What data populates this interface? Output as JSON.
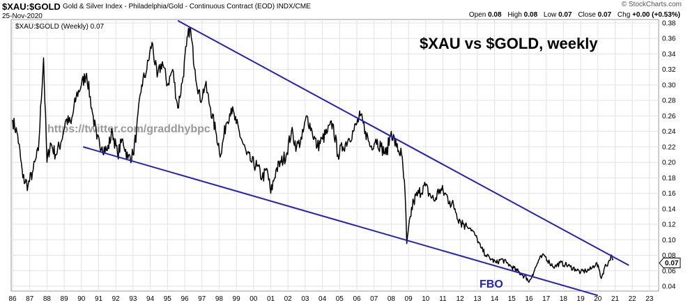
{
  "header": {
    "symbol": "$XAU:$GOLD",
    "description": "Gold & Silver Index - Philadelphia/Gold - Continuous Contract (EOD)  INDX/CME",
    "date": "25-Nov-2020",
    "brand": "© StockCharts.com",
    "open_label": "Open",
    "open": "0.08",
    "high_label": "High",
    "high": "0.08",
    "low_label": "Low",
    "low": "0.07",
    "close_label": "Close",
    "close": "0.07",
    "chg_label": "Chg",
    "chg": "+0.00 (+0.53%)"
  },
  "colors": {
    "price": "#000000",
    "trendline": "#1e1ed2",
    "grid": "#e2e2e2",
    "fbo_text": "#1e1ed2"
  },
  "chart_data": {
    "type": "line",
    "title": "$XAU vs $GOLD, weekly",
    "legend": "$XAU:$GOLD (Weekly) 0.07",
    "legend_position": "top-left",
    "watermark": "https://twitter.com/graddhybpc",
    "annotation": "FBO",
    "last_value_label": "0.07",
    "ylim": [
      0.03,
      0.385
    ],
    "xlim": [
      1986.0,
      2023.5
    ],
    "y_ticks": [
      "0.04",
      "0.06",
      "0.08",
      "0.10",
      "0.12",
      "0.14",
      "0.16",
      "0.18",
      "0.20",
      "0.22",
      "0.24",
      "0.26",
      "0.28",
      "0.30",
      "0.32",
      "0.34",
      "0.36",
      "0.38"
    ],
    "x_ticks": [
      "86",
      "87",
      "88",
      "89",
      "90",
      "91",
      "92",
      "93",
      "94",
      "95",
      "96",
      "97",
      "98",
      "99",
      "00",
      "01",
      "02",
      "03",
      "04",
      "05",
      "06",
      "07",
      "08",
      "09",
      "10",
      "11",
      "12",
      "13",
      "14",
      "15",
      "16",
      "17",
      "18",
      "19",
      "20",
      "21",
      "22",
      "23"
    ],
    "series": [
      {
        "name": "$XAU:$GOLD (Weekly)",
        "x": [
          1986.0,
          1986.3,
          1986.6,
          1986.9,
          1987.2,
          1987.5,
          1987.8,
          1988.0,
          1988.2,
          1988.5,
          1988.8,
          1989.1,
          1989.4,
          1989.7,
          1990.0,
          1990.3,
          1990.6,
          1990.9,
          1991.2,
          1991.5,
          1991.8,
          1992.1,
          1992.4,
          1992.7,
          1993.0,
          1993.2,
          1993.5,
          1993.8,
          1994.1,
          1994.4,
          1994.7,
          1995.0,
          1995.3,
          1995.6,
          1995.9,
          1996.1,
          1996.3,
          1996.6,
          1996.9,
          1997.2,
          1997.5,
          1997.8,
          1998.1,
          1998.4,
          1998.7,
          1999.0,
          1999.3,
          1999.6,
          1999.9,
          2000.2,
          2000.5,
          2000.8,
          2001.0,
          2001.3,
          2001.6,
          2001.9,
          2002.2,
          2002.5,
          2002.8,
          2003.1,
          2003.4,
          2003.7,
          2004.0,
          2004.3,
          2004.6,
          2004.9,
          2005.2,
          2005.5,
          2005.8,
          2006.0,
          2006.2,
          2006.5,
          2006.8,
          2007.1,
          2007.4,
          2007.7,
          2008.0,
          2008.3,
          2008.6,
          2008.8,
          2008.9,
          2009.1,
          2009.3,
          2009.6,
          2009.9,
          2010.2,
          2010.5,
          2010.8,
          2011.1,
          2011.4,
          2011.7,
          2012.0,
          2012.3,
          2012.6,
          2012.9,
          2013.2,
          2013.5,
          2013.8,
          2014.1,
          2014.4,
          2014.7,
          2015.0,
          2015.3,
          2015.6,
          2015.9,
          2016.0,
          2016.2,
          2016.4,
          2016.6,
          2016.9,
          2017.2,
          2017.5,
          2017.8,
          2018.1,
          2018.4,
          2018.7,
          2019.0,
          2019.3,
          2019.6,
          2019.9,
          2020.1,
          2020.2,
          2020.4,
          2020.6,
          2020.8,
          2020.9
        ],
        "values": [
          0.255,
          0.235,
          0.18,
          0.17,
          0.19,
          0.215,
          0.335,
          0.2,
          0.225,
          0.21,
          0.225,
          0.255,
          0.25,
          0.285,
          0.3,
          0.315,
          0.27,
          0.23,
          0.22,
          0.215,
          0.24,
          0.21,
          0.23,
          0.205,
          0.21,
          0.24,
          0.3,
          0.32,
          0.355,
          0.31,
          0.33,
          0.3,
          0.32,
          0.27,
          0.31,
          0.35,
          0.375,
          0.32,
          0.28,
          0.3,
          0.27,
          0.24,
          0.21,
          0.25,
          0.27,
          0.25,
          0.23,
          0.21,
          0.2,
          0.195,
          0.18,
          0.19,
          0.16,
          0.19,
          0.2,
          0.21,
          0.24,
          0.22,
          0.23,
          0.26,
          0.24,
          0.22,
          0.23,
          0.24,
          0.25,
          0.21,
          0.22,
          0.23,
          0.24,
          0.25,
          0.26,
          0.24,
          0.22,
          0.23,
          0.22,
          0.21,
          0.24,
          0.22,
          0.21,
          0.16,
          0.095,
          0.13,
          0.15,
          0.16,
          0.17,
          0.16,
          0.15,
          0.165,
          0.16,
          0.15,
          0.14,
          0.125,
          0.12,
          0.115,
          0.105,
          0.09,
          0.08,
          0.075,
          0.07,
          0.075,
          0.07,
          0.065,
          0.06,
          0.055,
          0.05,
          0.045,
          0.055,
          0.065,
          0.075,
          0.08,
          0.07,
          0.065,
          0.07,
          0.068,
          0.065,
          0.062,
          0.058,
          0.06,
          0.062,
          0.07,
          0.06,
          0.05,
          0.065,
          0.07,
          0.08,
          0.075
        ]
      }
    ],
    "trendlines": [
      {
        "name": "upper-resistance",
        "x1": 1995.6,
        "y1": 0.383,
        "x2": 2021.8,
        "y2": 0.067
      },
      {
        "name": "lower-support",
        "x1": 1990.1,
        "y1": 0.22,
        "x2": 2020.0,
        "y2": 0.028
      }
    ]
  }
}
